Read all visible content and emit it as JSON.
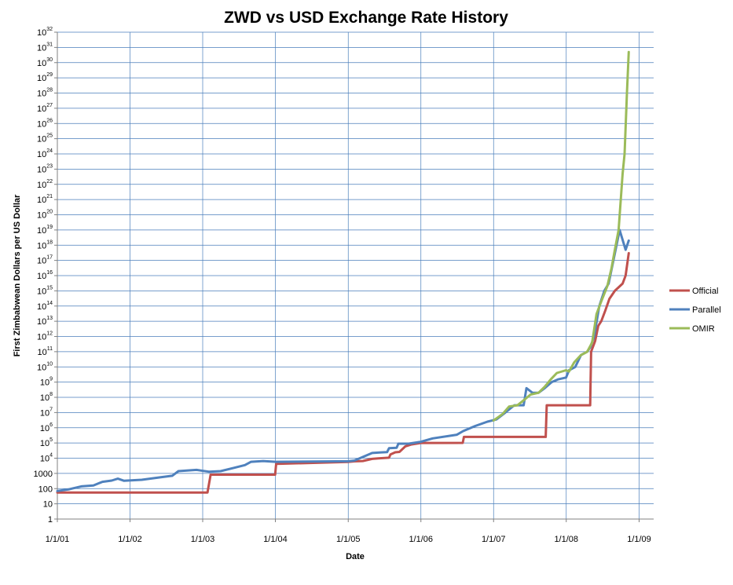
{
  "chart_data": {
    "type": "line",
    "title": "ZWD vs USD Exchange Rate History",
    "xlabel": "Date",
    "ylabel": "First Zimbabwean Dollars per US Dollar",
    "y_scale": "log10",
    "ylim": [
      1,
      1e+32
    ],
    "xlim": [
      "2001-01-01",
      "2009-03-15"
    ],
    "x_ticks": [
      {
        "date": "2001-01-01",
        "label": "1/1/01"
      },
      {
        "date": "2002-01-01",
        "label": "1/1/02"
      },
      {
        "date": "2003-01-01",
        "label": "1/1/03"
      },
      {
        "date": "2004-01-01",
        "label": "1/1/04"
      },
      {
        "date": "2005-01-01",
        "label": "1/1/05"
      },
      {
        "date": "2006-01-01",
        "label": "1/1/06"
      },
      {
        "date": "2007-01-01",
        "label": "1/1/07"
      },
      {
        "date": "2008-01-01",
        "label": "1/1/08"
      },
      {
        "date": "2009-01-01",
        "label": "1/1/09"
      }
    ],
    "y_ticks": [
      {
        "exp": 0,
        "base": "1",
        "sup": ""
      },
      {
        "exp": 1,
        "base": "10",
        "sup": ""
      },
      {
        "exp": 2,
        "base": "100",
        "sup": ""
      },
      {
        "exp": 3,
        "base": "1000",
        "sup": ""
      },
      {
        "exp": 4,
        "base": "10",
        "sup": "4"
      },
      {
        "exp": 5,
        "base": "10",
        "sup": "5"
      },
      {
        "exp": 6,
        "base": "10",
        "sup": "6"
      },
      {
        "exp": 7,
        "base": "10",
        "sup": "7"
      },
      {
        "exp": 8,
        "base": "10",
        "sup": "8"
      },
      {
        "exp": 9,
        "base": "10",
        "sup": "9"
      },
      {
        "exp": 10,
        "base": "10",
        "sup": "10"
      },
      {
        "exp": 11,
        "base": "10",
        "sup": "11"
      },
      {
        "exp": 12,
        "base": "10",
        "sup": "12"
      },
      {
        "exp": 13,
        "base": "10",
        "sup": "13"
      },
      {
        "exp": 14,
        "base": "10",
        "sup": "14"
      },
      {
        "exp": 15,
        "base": "10",
        "sup": "15"
      },
      {
        "exp": 16,
        "base": "10",
        "sup": "16"
      },
      {
        "exp": 17,
        "base": "10",
        "sup": "17"
      },
      {
        "exp": 18,
        "base": "10",
        "sup": "18"
      },
      {
        "exp": 19,
        "base": "10",
        "sup": "19"
      },
      {
        "exp": 20,
        "base": "10",
        "sup": "20"
      },
      {
        "exp": 21,
        "base": "10",
        "sup": "21"
      },
      {
        "exp": 22,
        "base": "10",
        "sup": "22"
      },
      {
        "exp": 23,
        "base": "10",
        "sup": "23"
      },
      {
        "exp": 24,
        "base": "10",
        "sup": "24"
      },
      {
        "exp": 25,
        "base": "10",
        "sup": "25"
      },
      {
        "exp": 26,
        "base": "10",
        "sup": "26"
      },
      {
        "exp": 27,
        "base": "10",
        "sup": "27"
      },
      {
        "exp": 28,
        "base": "10",
        "sup": "28"
      },
      {
        "exp": 29,
        "base": "10",
        "sup": "29"
      },
      {
        "exp": 30,
        "base": "10",
        "sup": "30"
      },
      {
        "exp": 31,
        "base": "10",
        "sup": "31"
      },
      {
        "exp": 32,
        "base": "10",
        "sup": "32"
      }
    ],
    "grid": true,
    "legend_position": "right",
    "series": [
      {
        "name": "Official",
        "color": "#C0504D",
        "points": [
          {
            "x": "2001-01-01",
            "y": 55
          },
          {
            "x": "2003-01-25",
            "y": 55
          },
          {
            "x": "2003-02-10",
            "y": 824
          },
          {
            "x": "2003-12-31",
            "y": 824
          },
          {
            "x": "2004-01-05",
            "y": 4200
          },
          {
            "x": "2004-12-31",
            "y": 5700
          },
          {
            "x": "2005-02-01",
            "y": 6200
          },
          {
            "x": "2005-03-15",
            "y": 6500
          },
          {
            "x": "2005-05-01",
            "y": 9000
          },
          {
            "x": "2005-06-01",
            "y": 9800
          },
          {
            "x": "2005-07-25",
            "y": 10800
          },
          {
            "x": "2005-08-01",
            "y": 17600
          },
          {
            "x": "2005-08-25",
            "y": 24500
          },
          {
            "x": "2005-09-15",
            "y": 26000
          },
          {
            "x": "2005-10-15",
            "y": 60000
          },
          {
            "x": "2005-11-15",
            "y": 80000
          },
          {
            "x": "2005-12-31",
            "y": 100000
          },
          {
            "x": "2006-07-30",
            "y": 101000
          },
          {
            "x": "2006-08-05",
            "y": 250000
          },
          {
            "x": "2007-09-20",
            "y": 250000
          },
          {
            "x": "2007-09-25",
            "y": 30000000
          },
          {
            "x": "2008-04-30",
            "y": 30000000
          },
          {
            "x": "2008-05-05",
            "y": 100000000000.0
          },
          {
            "x": "2008-05-25",
            "y": 500000000000.0
          },
          {
            "x": "2008-06-10",
            "y": 5000000000000.0
          },
          {
            "x": "2008-06-25",
            "y": 10000000000000.0
          },
          {
            "x": "2008-07-15",
            "y": 50000000000000.0
          },
          {
            "x": "2008-08-05",
            "y": 300000000000000.0
          },
          {
            "x": "2008-09-01",
            "y": 1000000000000000.0
          },
          {
            "x": "2008-10-10",
            "y": 3000000000000000.0
          },
          {
            "x": "2008-10-25",
            "y": 1e+16
          },
          {
            "x": "2008-11-10",
            "y": 3e+17
          }
        ]
      },
      {
        "name": "Parallel",
        "color": "#4F81BD",
        "points": [
          {
            "x": "2001-01-01",
            "y": 70
          },
          {
            "x": "2001-03-01",
            "y": 90
          },
          {
            "x": "2001-05-01",
            "y": 140
          },
          {
            "x": "2001-07-01",
            "y": 160
          },
          {
            "x": "2001-08-15",
            "y": 280
          },
          {
            "x": "2001-10-01",
            "y": 340
          },
          {
            "x": "2001-11-01",
            "y": 450
          },
          {
            "x": "2001-12-01",
            "y": 330
          },
          {
            "x": "2002-03-01",
            "y": 380
          },
          {
            "x": "2002-06-01",
            "y": 550
          },
          {
            "x": "2002-08-01",
            "y": 700
          },
          {
            "x": "2002-09-01",
            "y": 1400
          },
          {
            "x": "2002-12-01",
            "y": 1700
          },
          {
            "x": "2003-02-01",
            "y": 1300
          },
          {
            "x": "2003-04-01",
            "y": 1400
          },
          {
            "x": "2003-06-01",
            "y": 2200
          },
          {
            "x": "2003-08-01",
            "y": 3500
          },
          {
            "x": "2003-09-01",
            "y": 5800
          },
          {
            "x": "2003-11-01",
            "y": 6500
          },
          {
            "x": "2004-01-01",
            "y": 5800
          },
          {
            "x": "2004-07-01",
            "y": 6000
          },
          {
            "x": "2004-12-31",
            "y": 6300
          },
          {
            "x": "2005-02-01",
            "y": 7000
          },
          {
            "x": "2005-04-01",
            "y": 15000
          },
          {
            "x": "2005-05-01",
            "y": 22000
          },
          {
            "x": "2005-06-15",
            "y": 24000
          },
          {
            "x": "2005-07-15",
            "y": 25000
          },
          {
            "x": "2005-07-25",
            "y": 45000
          },
          {
            "x": "2005-09-01",
            "y": 48000
          },
          {
            "x": "2005-09-10",
            "y": 90000
          },
          {
            "x": "2005-11-01",
            "y": 90000
          },
          {
            "x": "2006-01-01",
            "y": 120000
          },
          {
            "x": "2006-03-01",
            "y": 200000
          },
          {
            "x": "2006-07-01",
            "y": 350000
          },
          {
            "x": "2006-08-01",
            "y": 600000
          },
          {
            "x": "2006-10-01",
            "y": 1300000
          },
          {
            "x": "2006-12-01",
            "y": 2500000
          },
          {
            "x": "2007-01-15",
            "y": 3500000
          },
          {
            "x": "2007-03-01",
            "y": 10000000
          },
          {
            "x": "2007-04-15",
            "y": 30000000
          },
          {
            "x": "2007-05-01",
            "y": 30000000
          },
          {
            "x": "2007-06-01",
            "y": 30000000
          },
          {
            "x": "2007-06-15",
            "y": 400000000
          },
          {
            "x": "2007-07-15",
            "y": 200000000
          },
          {
            "x": "2007-08-15",
            "y": 200000000
          },
          {
            "x": "2007-09-15",
            "y": 400000000
          },
          {
            "x": "2007-10-20",
            "y": 1000000000
          },
          {
            "x": "2007-11-20",
            "y": 1500000000
          },
          {
            "x": "2007-12-31",
            "y": 2000000000
          },
          {
            "x": "2008-01-15",
            "y": 6000000000
          },
          {
            "x": "2008-02-15",
            "y": 10000000000
          },
          {
            "x": "2008-03-15",
            "y": 60000000000
          },
          {
            "x": "2008-04-15",
            "y": 100000000000
          },
          {
            "x": "2008-05-01",
            "y": 200000000000
          },
          {
            "x": "2008-05-20",
            "y": 1000000000000
          },
          {
            "x": "2008-06-15",
            "y": 100000000000000.0
          },
          {
            "x": "2008-07-10",
            "y": 1000000000000000.0
          },
          {
            "x": "2008-08-01",
            "y": 3000000000000000.0
          },
          {
            "x": "2008-08-25",
            "y": 1e+17
          },
          {
            "x": "2008-09-25",
            "y": 1e+19
          },
          {
            "x": "2008-10-25",
            "y": 5e+17
          },
          {
            "x": "2008-11-10",
            "y": 2e+18
          }
        ]
      },
      {
        "name": "OMIR",
        "color": "#9BBB59",
        "points": [
          {
            "x": "2007-01-01",
            "y": 3000000
          },
          {
            "x": "2007-02-15",
            "y": 8000000
          },
          {
            "x": "2007-03-20",
            "y": 25000000
          },
          {
            "x": "2007-05-01",
            "y": 30000000
          },
          {
            "x": "2007-06-10",
            "y": 80000000
          },
          {
            "x": "2007-07-05",
            "y": 150000000
          },
          {
            "x": "2007-08-15",
            "y": 200000000
          },
          {
            "x": "2007-09-15",
            "y": 500000000
          },
          {
            "x": "2007-10-15",
            "y": 1500000000
          },
          {
            "x": "2007-11-15",
            "y": 4000000000
          },
          {
            "x": "2007-12-31",
            "y": 6000000000
          },
          {
            "x": "2008-01-15",
            "y": 5000000000
          },
          {
            "x": "2008-02-10",
            "y": 20000000000
          },
          {
            "x": "2008-03-15",
            "y": 60000000000
          },
          {
            "x": "2008-04-15",
            "y": 100000000000
          },
          {
            "x": "2008-05-10",
            "y": 400000000000
          },
          {
            "x": "2008-06-01",
            "y": 30000000000000.0
          },
          {
            "x": "2008-06-25",
            "y": 200000000000000.0
          },
          {
            "x": "2008-07-25",
            "y": 2000000000000000.0
          },
          {
            "x": "2008-08-15",
            "y": 3e+16
          },
          {
            "x": "2008-09-01",
            "y": 5e+17
          },
          {
            "x": "2008-09-20",
            "y": 1e+19
          },
          {
            "x": "2008-10-10",
            "y": 5e+22
          },
          {
            "x": "2008-10-20",
            "y": 1e+24
          },
          {
            "x": "2008-11-01",
            "y": 1e+28
          },
          {
            "x": "2008-11-10",
            "y": 5e+30
          }
        ]
      }
    ]
  }
}
